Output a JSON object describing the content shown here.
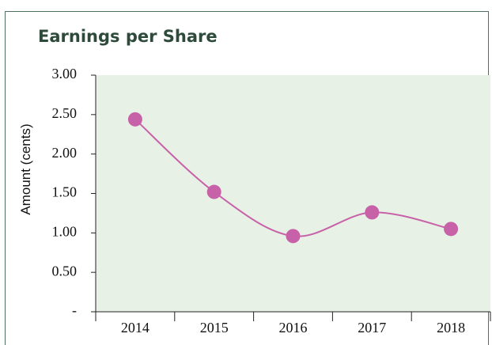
{
  "chart_data": {
    "type": "line",
    "title": "Earnings per Share",
    "y_label": "Amount (cents)",
    "categories": [
      "2014",
      "2015",
      "2016",
      "2017",
      "2018"
    ],
    "values": [
      2.44,
      1.52,
      0.96,
      1.26,
      1.05
    ],
    "color": "#c862a8",
    "plot_background": "#e8f1e6",
    "ylim": [
      0,
      3
    ],
    "yticks": [
      {
        "value": 0,
        "label": "-"
      },
      {
        "value": 0.5,
        "label": "0.50"
      },
      {
        "value": 1,
        "label": "1.00"
      },
      {
        "value": 1.5,
        "label": "1.50"
      },
      {
        "value": 2,
        "label": "2.00"
      },
      {
        "value": 2.5,
        "label": "2.50"
      },
      {
        "value": 3,
        "label": "3.00"
      }
    ],
    "grid": false
  }
}
